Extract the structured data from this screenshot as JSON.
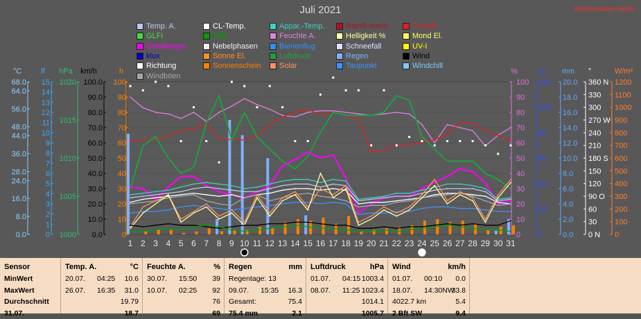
{
  "header": {
    "title": "Juli 2021",
    "brand": "Wetterstation Hetler"
  },
  "legend": {
    "items": [
      {
        "label": "Temp. A.",
        "color": "#b8c8f0",
        "col": 0,
        "row": 0
      },
      {
        "label": "CL-Temp.",
        "color": "#ffffff",
        "col": 1,
        "row": 0
      },
      {
        "label": "Appar.-Temp.",
        "color": "#40d0c0",
        "col": 2,
        "row": 0
      },
      {
        "label": "RainR mm/h",
        "color": "#b01028",
        "col": 3,
        "row": 0
      },
      {
        "label": "ThetaE",
        "color": "#e02020",
        "col": 4,
        "row": 0
      },
      {
        "label": "GLFI",
        "color": "#40e040",
        "col": 0,
        "row": 1
      },
      {
        "label": "WBI",
        "color": "#00a000",
        "col": 1,
        "row": 1
      },
      {
        "label": "Feuchte A.",
        "color": "#e080e0",
        "col": 2,
        "row": 1
      },
      {
        "label": "Helligkeit %",
        "color": "#ffffa0",
        "col": 3,
        "row": 1
      },
      {
        "label": "Mond El.",
        "color": "#ffff60",
        "col": 4,
        "row": 1
      },
      {
        "label": "Gewitterget.",
        "color": "#ff00ff",
        "col": 0,
        "row": 2
      },
      {
        "label": "Nebelphasen",
        "color": "#f0f0f0",
        "col": 1,
        "row": 2
      },
      {
        "label": "Bienenflug",
        "color": "#3090ff",
        "col": 2,
        "row": 2
      },
      {
        "label": "Schneefall",
        "color": "#e0e0ff",
        "col": 3,
        "row": 2
      },
      {
        "label": "UV-I",
        "color": "#ffff00",
        "col": 4,
        "row": 2
      },
      {
        "label": "klux",
        "color": "#0000c0",
        "col": 0,
        "row": 3
      },
      {
        "label": "Sonne El.",
        "color": "#ff9020",
        "col": 1,
        "row": 3
      },
      {
        "label": "Luftdruck",
        "color": "#20a040",
        "col": 2,
        "row": 3
      },
      {
        "label": "Regen",
        "color": "#80b0ff",
        "col": 3,
        "row": 3
      },
      {
        "label": "Wind",
        "color": "#000000",
        "col": 4,
        "row": 3
      },
      {
        "label": "Richtung",
        "color": "#ffffff",
        "col": 0,
        "row": 4
      },
      {
        "label": "Sonnenschein",
        "color": "#ff8000",
        "col": 1,
        "row": 4
      },
      {
        "label": "Solar",
        "color": "#ff9060",
        "col": 2,
        "row": 4
      },
      {
        "label": "Taupunkt",
        "color": "#4090ff",
        "col": 3,
        "row": 4
      },
      {
        "label": "Windchill",
        "color": "#80c8ff",
        "col": 4,
        "row": 4
      },
      {
        "label": "Windböen",
        "color": "#a0a8b0",
        "col": 0,
        "row": 5
      }
    ]
  },
  "chart_data": {
    "type": "line",
    "title": "Juli 2021",
    "x": [
      1,
      2,
      3,
      4,
      5,
      6,
      7,
      8,
      9,
      10,
      11,
      12,
      13,
      14,
      15,
      16,
      17,
      18,
      19,
      20,
      21,
      22,
      23,
      24,
      25,
      26,
      27,
      28,
      29,
      30,
      31
    ],
    "moon_phases": [
      {
        "day": 10,
        "phase": "new"
      },
      {
        "day": 24,
        "phase": "full"
      }
    ],
    "left_axes": [
      {
        "unit": "°C",
        "color": "#8fd0ff",
        "min": 0.0,
        "max": 68.0,
        "ticks": [
          "68.0",
          "64.0",
          "56.0",
          "48.0",
          "44.0",
          "36.0",
          "28.0",
          "24.0",
          "16.0",
          "8.0",
          "0.0"
        ]
      },
      {
        "unit": "lf",
        "color": "#3aa8ff",
        "min": 0,
        "max": 15,
        "ticks": [
          "15",
          "14",
          "13",
          "12",
          "11",
          "10",
          "9",
          "8",
          "7",
          "6",
          "5",
          "4",
          "3",
          "2",
          "1",
          "0"
        ]
      },
      {
        "unit": "hPa",
        "color": "#30c070",
        "min": 1000,
        "max": 1020,
        "ticks": [
          "1020",
          "1015",
          "1010",
          "1005",
          "1000"
        ]
      },
      {
        "unit": "km/h",
        "color": "#000000",
        "min": 0,
        "max": 100,
        "ticks": [
          "100.0",
          "90.0",
          "80.0",
          "70.0",
          "60.0",
          "50.0",
          "40.0",
          "30.0",
          "20.0",
          "10.0",
          "0.0"
        ]
      },
      {
        "unit": "h",
        "color": "#ff8000",
        "min": 0,
        "max": 100,
        "ticks": [
          "100",
          "90",
          "80",
          "70",
          "60",
          "50",
          "40",
          "30",
          "20",
          "10",
          "0"
        ]
      }
    ],
    "right_axes": [
      {
        "unit": "%",
        "color": "#e070e0",
        "min": 0,
        "max": 100,
        "ticks": [
          "100",
          "90",
          "80",
          "70",
          "60",
          "50",
          "40",
          "30",
          "20",
          "10",
          "0"
        ]
      },
      {
        "unit": "cb",
        "color": "#3050ff",
        "min": 0,
        "max": 120,
        "ticks": [
          "120",
          "100",
          "80",
          "60",
          "40",
          "20",
          "0"
        ]
      },
      {
        "unit": "mm",
        "color": "#5fa8ff",
        "min": 0,
        "max": 20,
        "ticks": [
          "20.0",
          "18.0",
          "16.0",
          "14.0",
          "12.0",
          "10.0",
          "8.0",
          "6.0",
          "4.0",
          "2.0",
          "0.0"
        ]
      },
      {
        "unit": "°",
        "color": "#ffffff",
        "min": 0,
        "max": 360,
        "ticks": [
          "360 N",
          "330",
          "300",
          "270 W",
          "240",
          "210",
          "180 S",
          "150",
          "120",
          "90 O",
          "60",
          "30",
          "0 N"
        ]
      },
      {
        "unit": "W/m²",
        "color": "#ff7f2a",
        "min": 0,
        "max": 1200,
        "ticks": [
          "1200",
          "1100",
          "1000",
          "900",
          "800",
          "700",
          "600",
          "500",
          "400",
          "300",
          "200",
          "100",
          "0"
        ]
      }
    ],
    "series": [
      {
        "name": "Feuchte A.",
        "color": "#e080e0",
        "axis": "%",
        "values": [
          90,
          83,
          80,
          79,
          76,
          80,
          74,
          80,
          84,
          89,
          85,
          82,
          78,
          77,
          80,
          81,
          81,
          80,
          79,
          78,
          79,
          80,
          79,
          72,
          60,
          72,
          70,
          68,
          58,
          65,
          70
        ]
      },
      {
        "name": "ThetaE",
        "color": "#e02020",
        "axis": "%",
        "values": [
          61,
          62,
          62,
          64,
          68,
          69,
          73,
          63,
          62,
          62,
          64,
          72,
          77,
          80,
          82,
          78,
          80,
          78,
          76,
          54,
          55,
          59,
          59,
          60,
          62,
          66,
          73,
          73,
          68,
          65,
          61
        ]
      },
      {
        "name": "Luftdruck",
        "color": "#20a040",
        "axis": "%",
        "values": [
          30,
          58,
          64,
          50,
          40,
          44,
          73,
          91,
          62,
          80,
          64,
          56,
          48,
          43,
          51,
          67,
          80,
          78,
          78,
          78,
          80,
          91,
          88,
          64,
          56,
          48,
          48,
          48,
          40,
          36,
          30
        ]
      },
      {
        "name": "Gewitterget.",
        "color": "#ff00ff",
        "axis": "%",
        "values": [
          31,
          30,
          23,
          31,
          38,
          38,
          32,
          28,
          26,
          24,
          28,
          32,
          45,
          49,
          54,
          50,
          52,
          37,
          14,
          20,
          24,
          25,
          25,
          30,
          34,
          38,
          43,
          41,
          34,
          20,
          22
        ]
      },
      {
        "name": "Temp. A.",
        "color": "#b8c8f0",
        "axis": "%",
        "values": [
          24,
          25,
          26,
          27,
          28,
          30,
          31,
          30,
          29,
          28,
          28,
          30,
          32,
          33,
          33,
          31,
          33,
          32,
          22,
          23,
          24,
          25,
          25,
          27,
          29,
          30,
          30,
          30,
          28,
          22,
          23
        ]
      },
      {
        "name": "CL-Temp.",
        "color": "#ffffff",
        "axis": "%",
        "values": [
          21,
          23,
          24,
          25,
          26,
          27,
          26,
          25,
          26,
          24,
          26,
          27,
          29,
          30,
          30,
          29,
          30,
          29,
          20,
          21,
          21,
          22,
          23,
          24,
          26,
          27,
          27,
          26,
          25,
          21,
          20
        ]
      },
      {
        "name": "Appar.-Temp.",
        "color": "#40d0c0",
        "axis": "%",
        "values": [
          26,
          27,
          28,
          29,
          31,
          33,
          34,
          33,
          32,
          30,
          31,
          33,
          35,
          36,
          36,
          34,
          36,
          35,
          23,
          24,
          25,
          27,
          27,
          29,
          31,
          33,
          33,
          32,
          30,
          23,
          24
        ]
      },
      {
        "name": "Taupunkt",
        "color": "#4090ff",
        "axis": "%",
        "values": [
          14,
          15,
          15,
          16,
          18,
          19,
          18,
          17,
          16,
          17,
          18,
          19,
          20,
          21,
          21,
          20,
          21,
          20,
          13,
          14,
          14,
          15,
          15,
          17,
          18,
          18,
          17,
          17,
          16,
          15,
          15
        ]
      },
      {
        "name": "Windböen",
        "color": "#a0a8b0",
        "axis": "%",
        "values": [
          20,
          21,
          22,
          24,
          25,
          26,
          22,
          20,
          19,
          24,
          26,
          22,
          24,
          26,
          27,
          25,
          24,
          22,
          18,
          19,
          19,
          21,
          22,
          24,
          25,
          26,
          27,
          25,
          22,
          19,
          20
        ]
      },
      {
        "name": "Solar",
        "color": "#ff9060",
        "axis": "%",
        "values": [
          5,
          18,
          22,
          26,
          10,
          15,
          20,
          12,
          16,
          8,
          26,
          14,
          24,
          28,
          18,
          30,
          26,
          32,
          8,
          12,
          18,
          14,
          18,
          26,
          36,
          22,
          28,
          24,
          10,
          26,
          36
        ]
      },
      {
        "name": "Helligkeit %",
        "color": "#ffffa0",
        "axis": "%",
        "values": [
          4,
          14,
          20,
          26,
          8,
          14,
          18,
          10,
          14,
          6,
          24,
          12,
          22,
          26,
          16,
          40,
          24,
          30,
          6,
          10,
          16,
          12,
          16,
          24,
          32,
          20,
          26,
          22,
          8,
          24,
          34
        ]
      },
      {
        "name": "Wind",
        "color": "#000000",
        "axis": "km/h",
        "values": [
          6,
          5,
          6,
          7,
          6,
          6,
          5,
          4,
          5,
          6,
          6,
          7,
          7,
          8,
          8,
          7,
          6,
          6,
          4,
          4,
          5,
          4,
          5,
          5,
          6,
          7,
          6,
          7,
          6,
          6,
          9
        ]
      },
      {
        "name": "WBI",
        "color": "#00a000",
        "axis": "%",
        "values": [
          2,
          2,
          3,
          4,
          3,
          5,
          6,
          5,
          3,
          2,
          3,
          4,
          5,
          6,
          5,
          4,
          4,
          3,
          2,
          2,
          3,
          2,
          3,
          4,
          5,
          6,
          5,
          4,
          3,
          3,
          2
        ]
      }
    ],
    "bars": [
      {
        "name": "Regen",
        "color": "#80b0ff",
        "axis": "mm",
        "values": [
          13.2,
          0,
          0,
          0,
          0,
          0,
          0,
          2.0,
          15.0,
          13.0,
          0,
          10.0,
          0,
          0,
          2.5,
          0,
          0,
          0,
          0,
          0,
          0,
          0,
          0,
          0,
          0,
          0,
          0,
          0,
          0,
          0.5,
          2.0
        ]
      },
      {
        "name": "Sonnenschein",
        "color": "#ff8000",
        "axis": "h",
        "values": [
          0,
          2,
          3,
          3,
          1,
          2,
          4,
          2,
          3,
          3,
          5,
          4,
          8,
          10,
          9,
          11,
          7,
          12,
          2,
          3,
          4,
          5,
          6,
          9,
          10,
          8,
          9,
          7,
          3,
          5,
          6
        ]
      }
    ],
    "wind_direction": {
      "name": "Richtung",
      "color": "#ffffff",
      "axis": "°",
      "values": [
        350,
        340,
        360,
        350,
        220,
        300,
        220,
        170,
        360,
        350,
        300,
        350,
        300,
        220,
        220,
        330,
        370,
        340,
        340,
        210,
        340,
        210,
        230,
        220,
        210,
        220,
        220,
        220,
        210,
        190,
        210
      ]
    }
  },
  "stats": {
    "columns": [
      {
        "header": "Sensor",
        "unit": "",
        "rows": [
          [
            "MinWert",
            "",
            ""
          ],
          [
            "MaxWert",
            "",
            ""
          ],
          [
            "Durchschnitt",
            "",
            ""
          ],
          [
            "31.07.",
            "",
            ""
          ]
        ]
      },
      {
        "header": "Temp. A.",
        "unit": "°C",
        "rows": [
          [
            "20.07.",
            "04:25",
            "10.6"
          ],
          [
            "26.07.",
            "16:35",
            "31.0"
          ],
          [
            "",
            "",
            "19.79"
          ],
          [
            "",
            "",
            "18.7"
          ]
        ]
      },
      {
        "header": "Feuchte A.",
        "unit": "%",
        "rows": [
          [
            "30.07.",
            "15:50",
            "39"
          ],
          [
            "10.07.",
            "02:25",
            "92"
          ],
          [
            "",
            "",
            "76"
          ],
          [
            "",
            "",
            "69"
          ]
        ]
      },
      {
        "header": "Regen",
        "unit": "mm",
        "rows": [
          [
            "Regentage: 13",
            "",
            ""
          ],
          [
            "09.07.",
            "15:35",
            "16.3"
          ],
          [
            "Gesamt:",
            "",
            "75.4"
          ],
          [
            "75.4 mm",
            "",
            "2.1"
          ]
        ]
      },
      {
        "header": "Luftdruck",
        "unit": "hPa",
        "rows": [
          [
            "01.07.",
            "04:15",
            "1003.4"
          ],
          [
            "08.07.",
            "11:25",
            "1023.4"
          ],
          [
            "",
            "",
            "1014.1"
          ],
          [
            "",
            "",
            "1005.7"
          ]
        ]
      },
      {
        "header": "Wind",
        "unit": "km/h",
        "rows": [
          [
            "01.07.",
            "00:10",
            "0.0"
          ],
          [
            "18.07.",
            "14:30NW",
            "33.8"
          ],
          [
            "4022.7 km",
            "",
            "5.4"
          ],
          [
            "2 Bft SW",
            "",
            "9.4"
          ]
        ]
      }
    ]
  }
}
